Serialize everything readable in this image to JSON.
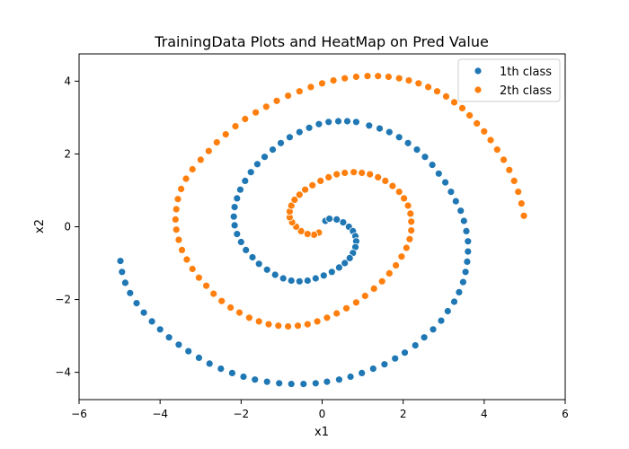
{
  "chart_data": {
    "type": "scatter",
    "title": "TrainingData Plots and HeatMap on Pred Value",
    "xlabel": "x1",
    "ylabel": "x2",
    "xlim": [
      -6,
      6
    ],
    "ylim": [
      -4.75,
      4.75
    ],
    "xticks": [
      -6,
      -4,
      -2,
      0,
      2,
      4,
      6
    ],
    "yticks": [
      -4,
      -2,
      0,
      2,
      4
    ],
    "grid": false,
    "legend_position": "top-right",
    "series": [
      {
        "name": "1th class",
        "color": "#1f77b4",
        "x": [
          0.08,
          0.18,
          0.36,
          0.52,
          0.66,
          0.76,
          0.82,
          0.84,
          0.82,
          0.76,
          0.68,
          0.56,
          0.42,
          0.24,
          0.04,
          -0.16,
          -0.36,
          -0.56,
          -0.76,
          -0.96,
          -1.16,
          -1.36,
          -1.56,
          -1.72,
          -1.88,
          -2.0,
          -2.1,
          -2.16,
          -2.18,
          -2.16,
          -2.1,
          -2.02,
          -1.9,
          -1.76,
          -1.6,
          -1.42,
          -1.22,
          -1.02,
          -0.8,
          -0.56,
          -0.32,
          -0.08,
          0.16,
          0.4,
          0.62,
          0.84,
          1.16,
          1.42,
          1.66,
          1.9,
          2.12,
          2.34,
          2.54,
          2.72,
          2.88,
          3.04,
          3.18,
          3.3,
          3.42,
          3.5,
          3.56,
          3.6,
          3.6,
          3.58,
          3.54,
          3.48,
          3.38,
          3.26,
          3.1,
          2.94,
          2.74,
          2.52,
          2.3,
          2.04,
          1.8,
          1.54,
          1.26,
          0.98,
          0.7,
          0.42,
          0.12,
          -0.16,
          -0.46,
          -0.76,
          -1.06,
          -1.36,
          -1.66,
          -1.94,
          -2.22,
          -2.5,
          -2.78,
          -3.04,
          -3.3,
          -3.54,
          -3.78,
          -4.0,
          -4.2,
          -4.4,
          -4.58,
          -4.74,
          -4.86,
          -4.94,
          -4.98
        ],
        "y": [
          0.16,
          0.22,
          0.2,
          0.12,
          0.0,
          -0.12,
          -0.26,
          -0.4,
          -0.56,
          -0.72,
          -0.86,
          -1.0,
          -1.12,
          -1.24,
          -1.34,
          -1.42,
          -1.48,
          -1.5,
          -1.48,
          -1.42,
          -1.32,
          -1.18,
          -1.02,
          -0.84,
          -0.64,
          -0.42,
          -0.2,
          0.04,
          0.28,
          0.54,
          0.78,
          1.02,
          1.26,
          1.5,
          1.72,
          1.92,
          2.12,
          2.3,
          2.46,
          2.6,
          2.72,
          2.82,
          2.88,
          2.9,
          2.9,
          2.88,
          2.78,
          2.7,
          2.6,
          2.46,
          2.3,
          2.12,
          1.92,
          1.7,
          1.46,
          1.22,
          0.96,
          0.7,
          0.44,
          0.16,
          -0.12,
          -0.4,
          -0.68,
          -0.96,
          -1.24,
          -1.52,
          -1.8,
          -2.06,
          -2.32,
          -2.58,
          -2.82,
          -3.04,
          -3.26,
          -3.46,
          -3.62,
          -3.78,
          -3.9,
          -4.02,
          -4.12,
          -4.2,
          -4.26,
          -4.3,
          -4.32,
          -4.32,
          -4.3,
          -4.26,
          -4.2,
          -4.12,
          -4.02,
          -3.9,
          -3.76,
          -3.6,
          -3.42,
          -3.24,
          -3.04,
          -2.82,
          -2.6,
          -2.36,
          -2.1,
          -1.82,
          -1.54,
          -1.24,
          -0.94
        ]
      },
      {
        "name": "2th class",
        "color": "#ff7f0e",
        "x": [
          -0.08,
          -0.2,
          -0.36,
          -0.52,
          -0.64,
          -0.74,
          -0.8,
          -0.8,
          -0.76,
          -0.68,
          -0.56,
          -0.42,
          -0.24,
          -0.04,
          0.16,
          0.36,
          0.56,
          0.78,
          0.98,
          1.18,
          1.38,
          1.56,
          1.74,
          1.9,
          2.02,
          2.12,
          2.18,
          2.2,
          2.2,
          2.16,
          2.08,
          1.96,
          1.82,
          1.66,
          1.48,
          1.28,
          1.06,
          0.84,
          0.6,
          0.36,
          0.12,
          -0.12,
          -0.36,
          -0.6,
          -0.84,
          -1.08,
          -1.32,
          -1.56,
          -1.8,
          -2.04,
          -2.26,
          -2.48,
          -2.68,
          -2.86,
          -3.04,
          -3.2,
          -3.34,
          -3.46,
          -3.54,
          -3.6,
          -3.62,
          -3.6,
          -3.56,
          -3.48,
          -3.36,
          -3.2,
          -3.0,
          -2.8,
          -2.6,
          -2.38,
          -2.14,
          -1.9,
          -1.64,
          -1.38,
          -1.12,
          -0.84,
          -0.56,
          -0.28,
          0.0,
          0.28,
          0.56,
          0.84,
          1.12,
          1.38,
          1.64,
          1.9,
          2.14,
          2.38,
          2.62,
          2.84,
          3.06,
          3.26,
          3.46,
          3.64,
          3.82,
          4.0,
          4.16,
          4.32,
          4.48,
          4.62,
          4.74,
          4.84,
          4.92,
          4.98
        ],
        "y": [
          -0.16,
          -0.22,
          -0.2,
          -0.12,
          0.0,
          0.12,
          0.26,
          0.42,
          0.58,
          0.74,
          0.88,
          1.02,
          1.14,
          1.26,
          1.36,
          1.44,
          1.48,
          1.5,
          1.48,
          1.44,
          1.36,
          1.26,
          1.12,
          0.96,
          0.78,
          0.58,
          0.36,
          0.14,
          -0.1,
          -0.34,
          -0.58,
          -0.82,
          -1.06,
          -1.28,
          -1.5,
          -1.7,
          -1.9,
          -2.08,
          -2.24,
          -2.38,
          -2.5,
          -2.6,
          -2.68,
          -2.72,
          -2.74,
          -2.72,
          -2.68,
          -2.6,
          -2.5,
          -2.36,
          -2.22,
          -2.04,
          -1.84,
          -1.62,
          -1.4,
          -1.16,
          -0.9,
          -0.64,
          -0.36,
          -0.08,
          0.2,
          0.48,
          0.76,
          1.04,
          1.32,
          1.58,
          1.84,
          2.08,
          2.32,
          2.54,
          2.76,
          2.96,
          3.14,
          3.3,
          3.46,
          3.6,
          3.72,
          3.84,
          3.94,
          4.02,
          4.08,
          4.12,
          4.14,
          4.14,
          4.12,
          4.08,
          4.02,
          3.94,
          3.84,
          3.72,
          3.58,
          3.42,
          3.26,
          3.06,
          2.84,
          2.62,
          2.38,
          2.12,
          1.84,
          1.56,
          1.26,
          0.96,
          0.64,
          0.3
        ]
      }
    ]
  }
}
